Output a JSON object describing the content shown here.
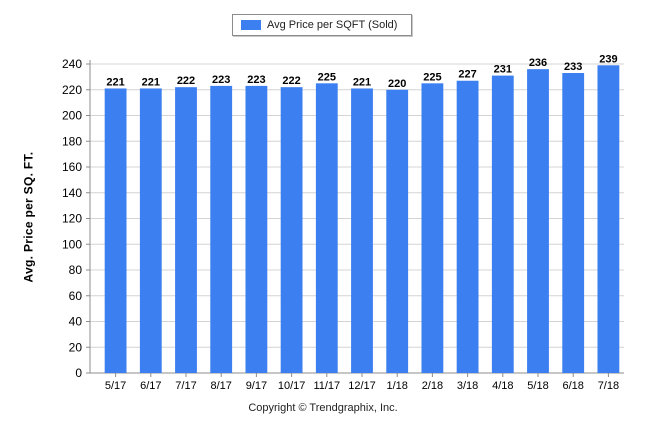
{
  "colors": {
    "bar": "#3c7ff0",
    "grid": "#d4d4d4",
    "axis": "#8c8c8c",
    "text": "#000000"
  },
  "legend": {
    "label": "Avg Price per SQFT (Sold)"
  },
  "footer": {
    "copyright": "Copyright © Trendgraphix, Inc."
  },
  "chart_data": {
    "type": "bar",
    "ylabel": "Avg. Price per SQ. FT.",
    "ylim": [
      0,
      240
    ],
    "yticks": [
      0,
      20,
      40,
      60,
      80,
      100,
      120,
      140,
      160,
      180,
      200,
      220,
      240
    ],
    "grid": true,
    "legend_position": "top-center",
    "categories": [
      "5/17",
      "6/17",
      "7/17",
      "8/17",
      "9/17",
      "10/17",
      "11/17",
      "12/17",
      "1/18",
      "2/18",
      "3/18",
      "4/18",
      "5/18",
      "6/18",
      "7/18"
    ],
    "series": [
      {
        "name": "Avg Price per SQFT (Sold)",
        "values": [
          221,
          221,
          222,
          223,
          223,
          222,
          225,
          221,
          220,
          225,
          227,
          231,
          236,
          233,
          239
        ]
      }
    ]
  }
}
